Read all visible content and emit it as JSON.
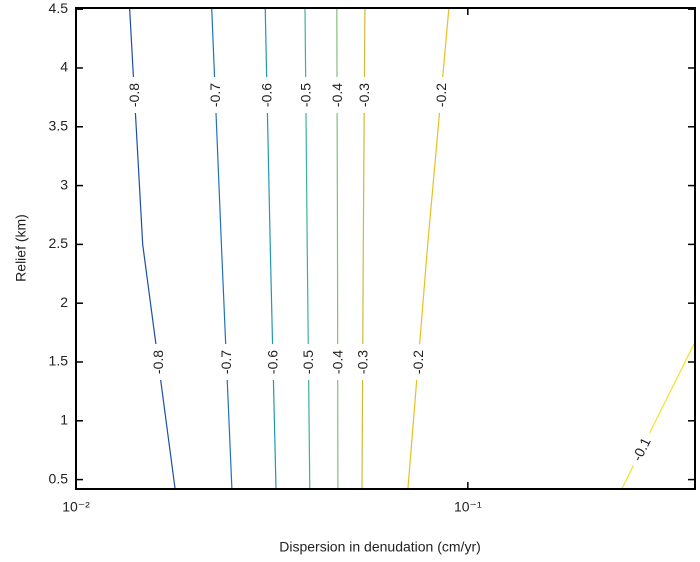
{
  "chart_data": {
    "type": "contour",
    "x_label": "Dispersion in denudation (cm/yr)",
    "y_label": "Relief (km)",
    "xscale": "log",
    "xlim": [
      0.01,
      0.38
    ],
    "ylim": [
      0.42,
      4.51
    ],
    "xticks": [
      {
        "value": 0.01,
        "label": "10⁻²"
      },
      {
        "value": 0.1,
        "label": "10⁻¹"
      }
    ],
    "yticks": [
      0.5,
      1,
      1.5,
      2,
      2.5,
      3,
      3.5,
      4,
      4.5
    ],
    "contours": [
      {
        "level": -0.8,
        "color": "#1c4fa3",
        "x": [
          0.0137,
          0.0148,
          0.0179
        ],
        "y": [
          4.51,
          2.5,
          0.42
        ]
      },
      {
        "level": -0.7,
        "color": "#1f72b8",
        "x": [
          0.0222,
          0.0235,
          0.025
        ],
        "y": [
          4.51,
          2.5,
          0.42
        ]
      },
      {
        "level": -0.6,
        "color": "#2596b0",
        "x": [
          0.0304,
          0.0313,
          0.0324
        ],
        "y": [
          4.51,
          2.5,
          0.42
        ]
      },
      {
        "level": -0.5,
        "color": "#3ab1a0",
        "x": [
          0.0384,
          0.0389,
          0.0395
        ],
        "y": [
          4.51,
          2.5,
          0.42
        ]
      },
      {
        "level": -0.4,
        "color": "#82c07a",
        "x": [
          0.0463,
          0.0465,
          0.0466
        ],
        "y": [
          4.51,
          2.5,
          0.42
        ]
      },
      {
        "level": -0.3,
        "color": "#d0b838",
        "x": [
          0.0546,
          0.0541,
          0.0537
        ],
        "y": [
          4.51,
          2.5,
          0.42
        ]
      },
      {
        "level": -0.2,
        "color": "#eabf22",
        "x": [
          0.0895,
          0.079,
          0.0703
        ],
        "y": [
          4.51,
          2.5,
          0.42
        ]
      },
      {
        "level": -0.1,
        "color": "#f2e324",
        "x": [
          0.247,
          0.38
        ],
        "y": [
          0.42,
          1.67
        ]
      }
    ]
  }
}
